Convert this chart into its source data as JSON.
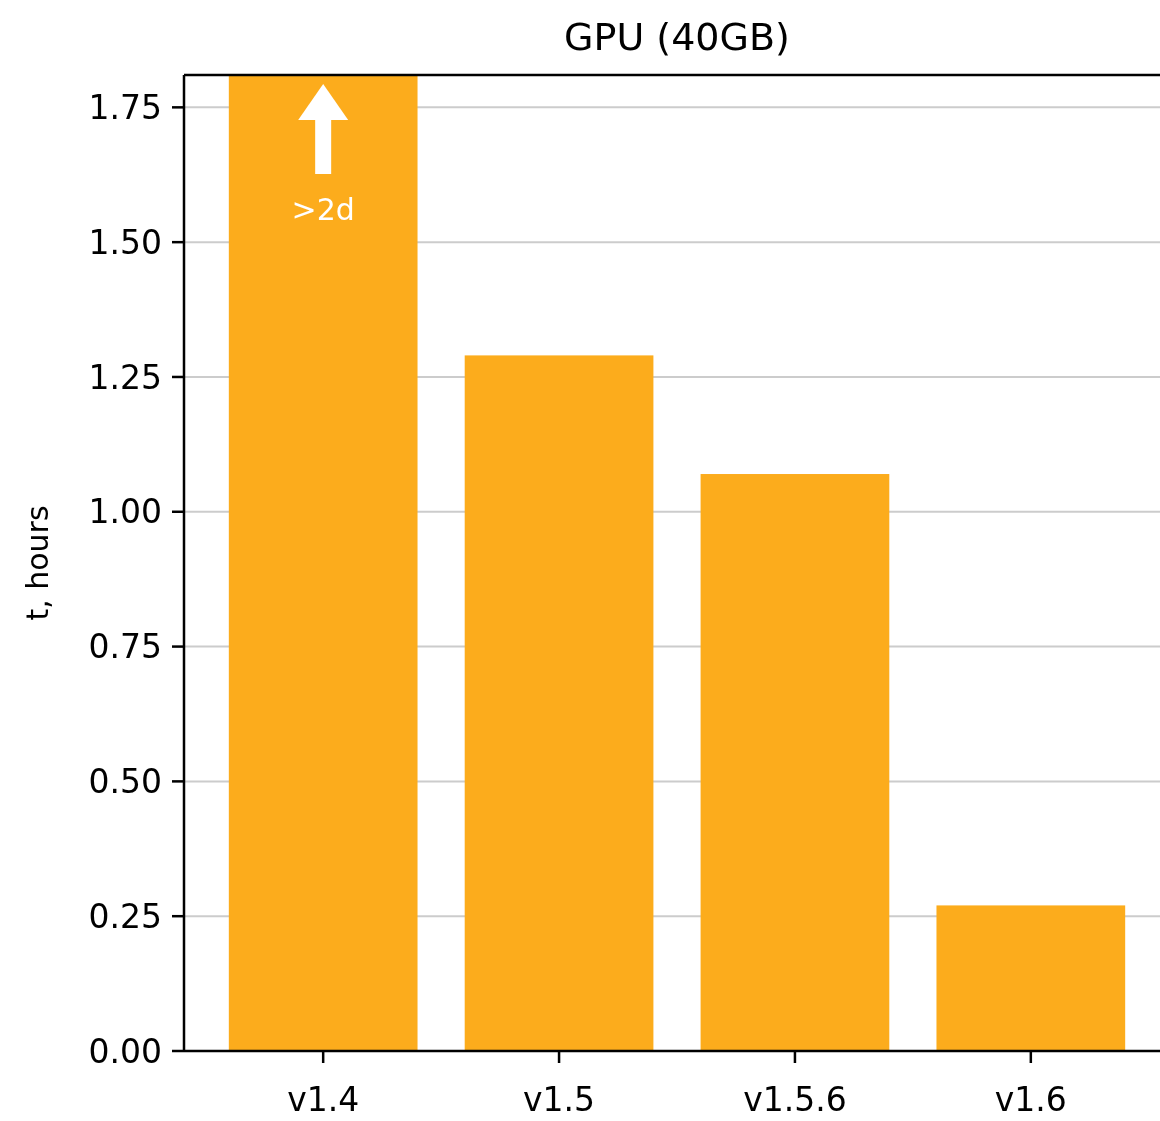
{
  "chart_data": {
    "type": "bar",
    "title": "GPU (40GB)",
    "ylabel": "t, hours",
    "categories": [
      "v1.4",
      "v1.5",
      "v1.5.6",
      "v1.6"
    ],
    "values": [
      1.81,
      1.29,
      1.07,
      0.27
    ],
    "color": "#fcac1c",
    "ylim": [
      0,
      1.81
    ],
    "yticks": [
      {
        "value": 0,
        "label": "0.00"
      },
      {
        "value": 0.25,
        "label": "0.25"
      },
      {
        "value": 0.5,
        "label": "0.50"
      },
      {
        "value": 0.75,
        "label": "0.75"
      },
      {
        "value": 1,
        "label": "1.00"
      },
      {
        "value": 1.25,
        "label": "1.25"
      },
      {
        "value": 1.5,
        "label": "1.50"
      },
      {
        "value": 1.75,
        "label": "1.75"
      }
    ],
    "grid": "y",
    "annotations": [
      ">2d"
    ]
  }
}
